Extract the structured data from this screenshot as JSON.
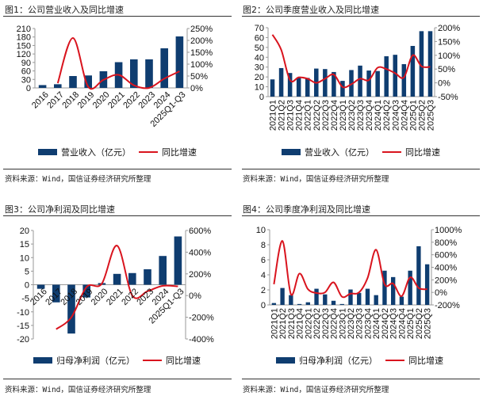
{
  "colors": {
    "bar": "#0f3d70",
    "line": "#d9141e",
    "axis": "#999999"
  },
  "source": "资料来源：Wind，国信证券经济研究所整理",
  "chart_data": [
    {
      "type": "bar+line",
      "title": "图1：公司营业收入及同比增速",
      "categories": [
        "2016",
        "2017",
        "2018",
        "2019",
        "2020",
        "2021",
        "2022",
        "2023",
        "2024",
        "2025Q1-Q3"
      ],
      "series": [
        {
          "name": "营业收入（亿元）",
          "type": "bar",
          "axis": "left",
          "values": [
            10,
            13,
            42,
            44,
            59,
            91,
            101,
            101,
            140,
            182
          ]
        },
        {
          "name": "同比增速",
          "type": "line",
          "axis": "right",
          "values": [
            null,
            20,
            210,
            5,
            34,
            55,
            11,
            0,
            39,
            70
          ]
        }
      ],
      "left_axis": {
        "range": [
          0,
          210
        ],
        "ticks": [
          "0",
          "30",
          "60",
          "90",
          "120",
          "150",
          "180",
          "210"
        ]
      },
      "right_axis": {
        "range": [
          0,
          250
        ],
        "unit": "%",
        "ticks": [
          "0%",
          "50%",
          "100%",
          "150%",
          "200%",
          "250%"
        ]
      },
      "grid": false,
      "legend": "bottom"
    },
    {
      "type": "bar+line",
      "title": "图2：公司季度营业收入及同比增速",
      "categories": [
        "2021Q1",
        "2021Q2",
        "2021Q3",
        "2021Q4",
        "2022Q1",
        "2022Q2",
        "2022Q3",
        "2022Q4",
        "2023Q1",
        "2023Q2",
        "2023Q3",
        "2023Q4",
        "2024Q1",
        "2024Q2",
        "2024Q3",
        "2024Q4",
        "2025Q1",
        "2025Q2",
        "2025Q3"
      ],
      "series": [
        {
          "name": "营业收入（亿元）",
          "type": "bar",
          "axis": "left",
          "values": [
            17.5,
            29,
            24,
            19.5,
            19,
            28.5,
            28,
            25,
            16,
            27,
            31.5,
            26.5,
            26,
            41,
            42.5,
            33,
            51.5,
            66.5,
            66.5
          ]
        },
        {
          "name": "同比增速",
          "type": "line",
          "axis": "right",
          "values": [
            175,
            120,
            10,
            20,
            15,
            0,
            15,
            30,
            -15,
            -5,
            15,
            10,
            55,
            50,
            35,
            20,
            100,
            60,
            58
          ]
        }
      ],
      "left_axis": {
        "range": [
          0,
          70
        ],
        "ticks": [
          "0",
          "10",
          "20",
          "30",
          "40",
          "50",
          "60",
          "70"
        ]
      },
      "right_axis": {
        "range": [
          -50,
          200
        ],
        "unit": "%",
        "ticks": [
          "-50%",
          "0%",
          "50%",
          "100%",
          "150%",
          "200%"
        ]
      },
      "grid": false,
      "legend": "bottom"
    },
    {
      "type": "bar+line",
      "title": "图3：公司净利润及同比增速",
      "categories": [
        "2016",
        "2017",
        "2018",
        "2019",
        "2020",
        "2021",
        "2022",
        "2023",
        "2024",
        "2025Q1-Q3"
      ],
      "series": [
        {
          "name": "归母净利润（亿元）",
          "type": "bar",
          "axis": "left",
          "values": [
            -1.5,
            -6.5,
            -18,
            -4.7,
            0.6,
            4,
            4.3,
            5.7,
            10.6,
            17.8
          ]
        },
        {
          "name": "同比增速",
          "type": "line",
          "axis": "right",
          "values": [
            null,
            -310,
            -200,
            80,
            110,
            460,
            0,
            40,
            90,
            85
          ]
        }
      ],
      "left_axis": {
        "range": [
          -20,
          20
        ],
        "ticks": [
          "-20",
          "-15",
          "-10",
          "-5",
          "0",
          "5",
          "10",
          "15",
          "20"
        ]
      },
      "right_axis": {
        "range": [
          -400,
          600
        ],
        "unit": "%",
        "ticks": [
          "-400%",
          "-200%",
          "0%",
          "200%",
          "400%",
          "600%"
        ]
      },
      "grid": false,
      "legend": "bottom"
    },
    {
      "type": "bar+line",
      "title": "图4：公司季度净利润及同比增速",
      "categories": [
        "2021Q1",
        "2021Q2",
        "2021Q3",
        "2021Q4",
        "2022Q1",
        "2022Q2",
        "2022Q3",
        "2022Q4",
        "2023Q1",
        "2023Q2",
        "2023Q3",
        "2023Q4",
        "2024Q1",
        "2024Q2",
        "2024Q3",
        "2024Q4",
        "2025Q1",
        "2025Q2",
        "2025Q3"
      ],
      "series": [
        {
          "name": "归母净利润（亿元）",
          "type": "bar",
          "axis": "left",
          "values": [
            0.25,
            2.25,
            1.3,
            0.12,
            0.35,
            2.15,
            1.4,
            0.55,
            0.12,
            2.05,
            1.6,
            2.15,
            1.3,
            4.55,
            3.7,
            1.1,
            4.55,
            7.8,
            5.4
          ]
        },
        {
          "name": "同比增速",
          "type": "line",
          "axis": "right",
          "values": [
            130,
            820,
            -30,
            300,
            50,
            -10,
            0,
            160,
            -70,
            -20,
            0,
            230,
            680,
            130,
            140,
            -60,
            240,
            70,
            50
          ]
        }
      ],
      "left_axis": {
        "range": [
          0,
          10
        ],
        "ticks": [
          "0",
          "2",
          "4",
          "6",
          "8",
          "10"
        ]
      },
      "right_axis": {
        "range": [
          -200,
          1000
        ],
        "unit": "%",
        "ticks": [
          "-200%",
          "0%",
          "200%",
          "400%",
          "600%",
          "800%",
          "1000%"
        ]
      },
      "grid": false,
      "legend": "bottom"
    }
  ]
}
